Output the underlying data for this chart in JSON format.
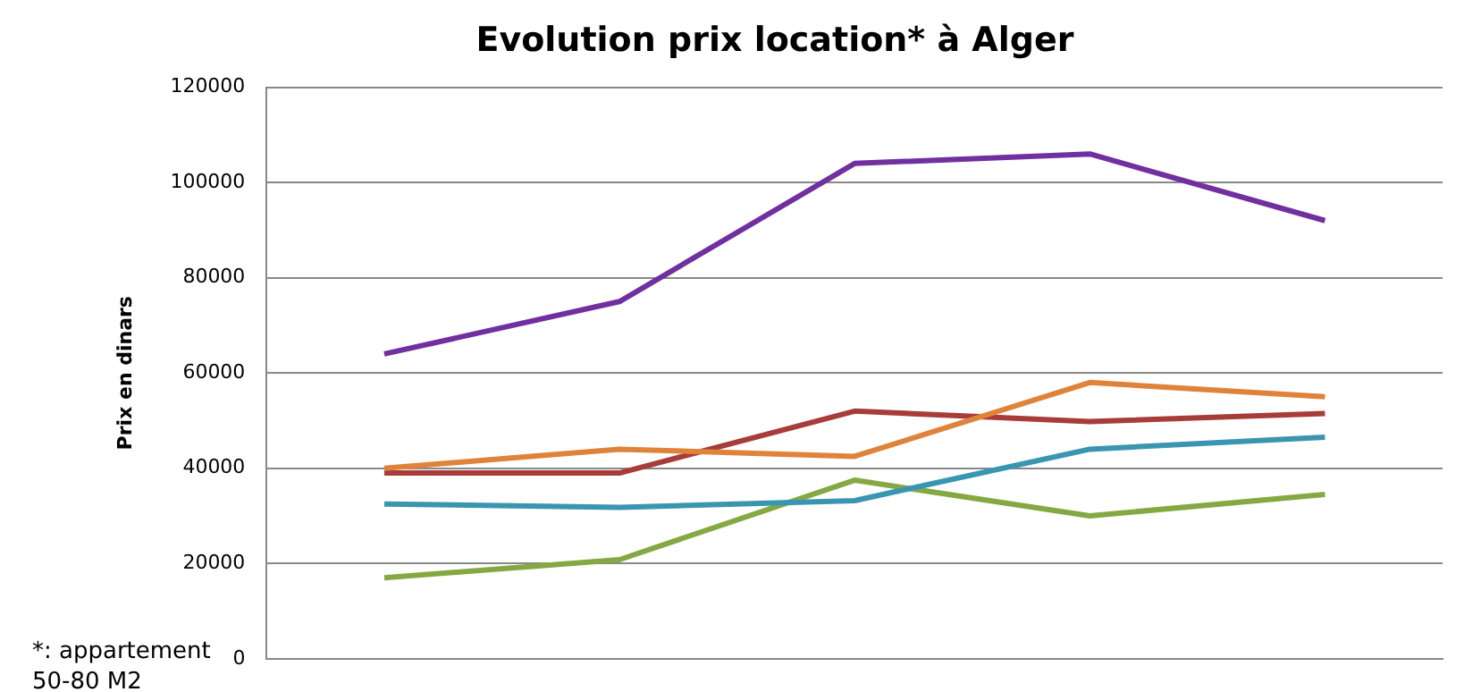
{
  "chart_data": {
    "type": "line",
    "title": "Evolution prix location* à Alger",
    "ylabel": "Prix en dinars",
    "annotations": [
      "*: appartement 50-80 M2"
    ],
    "categories": [
      null,
      null,
      null,
      null,
      null
    ],
    "series": [
      {
        "color": "#7030a0",
        "values": [
          64000,
          75000,
          104000,
          106000,
          92000
        ]
      },
      {
        "color": "#e0833a",
        "values": [
          40000,
          44000,
          42500,
          58000,
          55000
        ]
      },
      {
        "color": "#a83c3a",
        "values": [
          39000,
          39000,
          52000,
          49800,
          51500
        ]
      },
      {
        "color": "#3a96b0",
        "values": [
          32500,
          31800,
          33200,
          44000,
          46500
        ]
      },
      {
        "color": "#86a843",
        "values": [
          17000,
          20800,
          37500,
          30000,
          34500
        ]
      }
    ],
    "ylim": [
      0,
      120000
    ],
    "yticks": [
      0,
      20000,
      40000,
      60000,
      80000,
      100000,
      120000
    ],
    "grid": "y",
    "legend": false,
    "marker": "none"
  }
}
